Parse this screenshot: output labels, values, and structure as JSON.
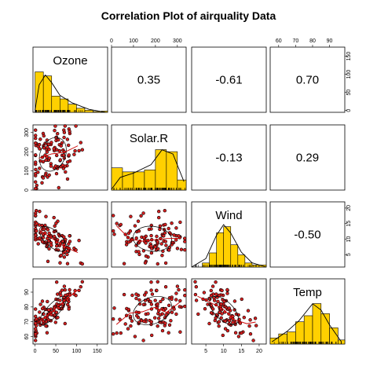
{
  "chart_data": {
    "type": "scatter-matrix",
    "title": "Correlation Plot of airquality Data",
    "variables": [
      {
        "name": "Ozone",
        "range": [
          -5,
          175
        ],
        "ticks": [
          0,
          50,
          100,
          150
        ],
        "tick_labels": [
          "0",
          "50",
          "100",
          "150"
        ]
      },
      {
        "name": "Solar.R",
        "range": [
          0,
          340
        ],
        "ticks": [
          0,
          100,
          200,
          300
        ],
        "tick_labels": [
          "0",
          "100",
          "200",
          "300"
        ]
      },
      {
        "name": "Wind",
        "range": [
          1,
          22
        ],
        "ticks": [
          5,
          10,
          15,
          20
        ],
        "tick_labels": [
          "5",
          "10",
          "15",
          "20"
        ]
      },
      {
        "name": "Temp",
        "range": [
          55,
          99
        ],
        "ticks": [
          60,
          70,
          80,
          90
        ],
        "tick_labels": [
          "60",
          "70",
          "80",
          "90"
        ]
      }
    ],
    "correlations": [
      {
        "row": 0,
        "col": 1,
        "value": "0.35"
      },
      {
        "row": 0,
        "col": 2,
        "value": "-0.61"
      },
      {
        "row": 0,
        "col": 3,
        "value": "0.70"
      },
      {
        "row": 1,
        "col": 2,
        "value": "-0.13"
      },
      {
        "row": 1,
        "col": 3,
        "value": "0.29"
      },
      {
        "row": 2,
        "col": 3,
        "value": "-0.50"
      }
    ],
    "histograms": [
      {
        "var": "Ozone",
        "edges": [
          0,
          20,
          40,
          60,
          80,
          100,
          120,
          140,
          160,
          180
        ],
        "density": [
          1.0,
          0.9,
          0.4,
          0.33,
          0.2,
          0.1,
          0.05,
          0.02,
          0.03
        ]
      },
      {
        "var": "Solar.R",
        "edges": [
          0,
          50,
          100,
          150,
          200,
          250,
          300,
          340
        ],
        "density": [
          0.55,
          0.45,
          0.45,
          0.5,
          1.0,
          0.95,
          0.25
        ]
      },
      {
        "var": "Wind",
        "edges": [
          0,
          2,
          4,
          6,
          8,
          10,
          12,
          14,
          16,
          18,
          20,
          22
        ],
        "density": [
          0.0,
          0.0,
          0.1,
          0.35,
          0.85,
          1.0,
          0.55,
          0.3,
          0.1,
          0.05,
          0.05
        ]
      },
      {
        "var": "Temp",
        "edges": [
          55,
          60,
          65,
          70,
          75,
          80,
          85,
          90,
          95,
          100
        ],
        "density": [
          0.15,
          0.25,
          0.3,
          0.55,
          0.7,
          1.0,
          0.75,
          0.4,
          0.1
        ]
      }
    ],
    "smooth": {
      "Ozone": [
        [
          0,
          0.05
        ],
        [
          10,
          0.65
        ],
        [
          25,
          0.88
        ],
        [
          40,
          0.7
        ],
        [
          60,
          0.4
        ],
        [
          90,
          0.22
        ],
        [
          130,
          0.07
        ],
        [
          170,
          0.0
        ]
      ],
      "Solar.R": [
        [
          0,
          0.02
        ],
        [
          40,
          0.3
        ],
        [
          100,
          0.4
        ],
        [
          180,
          0.6
        ],
        [
          230,
          0.95
        ],
        [
          280,
          0.85
        ],
        [
          330,
          0.2
        ]
      ],
      "Wind": [
        [
          1,
          0.0
        ],
        [
          5,
          0.2
        ],
        [
          8,
          0.75
        ],
        [
          10,
          1.0
        ],
        [
          12,
          0.8
        ],
        [
          15,
          0.35
        ],
        [
          18,
          0.1
        ],
        [
          22,
          0.0
        ]
      ],
      "Temp": [
        [
          56,
          0.05
        ],
        [
          65,
          0.3
        ],
        [
          72,
          0.55
        ],
        [
          80,
          0.95
        ],
        [
          85,
          0.8
        ],
        [
          90,
          0.45
        ],
        [
          97,
          0.05
        ]
      ]
    },
    "colors": {
      "bar": "#FFD000",
      "point_fill": "#D62020",
      "line": "#CC0000",
      "ellipse": "#000000",
      "density": "#000000"
    }
  }
}
